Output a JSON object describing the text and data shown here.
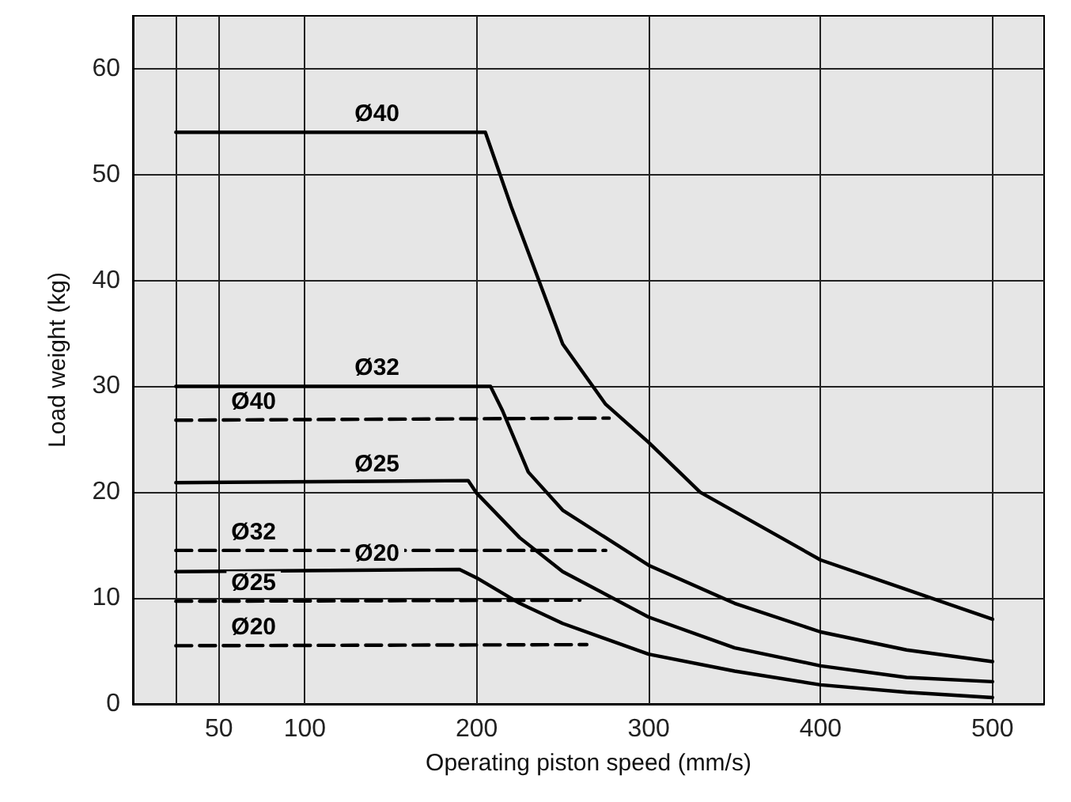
{
  "chart_data": {
    "type": "line",
    "xlabel": "Operating piston speed (mm/s)",
    "ylabel": "Load weight (kg)",
    "xlim": [
      0,
      530
    ],
    "xticks": [
      {
        "value": 25,
        "label": null
      },
      50,
      100,
      200,
      300,
      400,
      500
    ],
    "ylim": [
      0,
      65
    ],
    "yticks": [
      0,
      10,
      20,
      30,
      40,
      50,
      60
    ],
    "grid": true,
    "legend": false,
    "marker": "none",
    "series": [
      {
        "name": "Ø40",
        "color": "#000000",
        "line_style": "solid",
        "x": [
          25,
          205,
          220,
          250,
          275,
          300,
          330,
          400,
          450,
          500
        ],
        "values": [
          54,
          54,
          47,
          34,
          28.3,
          24.7,
          20,
          13.6,
          10.8,
          8
        ]
      },
      {
        "name": "Ø32",
        "color": "#000000",
        "line_style": "solid",
        "x": [
          25,
          208,
          215,
          230,
          250,
          300,
          350,
          400,
          450,
          500
        ],
        "values": [
          30,
          30,
          27.7,
          21.9,
          18.3,
          13.1,
          9.5,
          6.8,
          5.1,
          4
        ]
      },
      {
        "name": "Ø25",
        "color": "#000000",
        "line_style": "solid",
        "x": [
          25,
          195,
          200,
          225,
          250,
          300,
          350,
          400,
          450,
          500
        ],
        "values": [
          20.9,
          21.1,
          19.9,
          15.7,
          12.5,
          8.2,
          5.3,
          3.6,
          2.5,
          2.1
        ]
      },
      {
        "name": "Ø20",
        "color": "#000000",
        "line_style": "solid",
        "x": [
          25,
          190,
          200,
          225,
          250,
          300,
          350,
          400,
          450,
          500
        ],
        "values": [
          12.5,
          12.7,
          11.9,
          9.5,
          7.6,
          4.7,
          3.1,
          1.8,
          1.1,
          0.6
        ]
      },
      {
        "name": "Ø40",
        "color": "#000000",
        "line_style": "dashed",
        "x": [
          25,
          277
        ],
        "values": [
          26.8,
          27
        ]
      },
      {
        "name": "Ø32",
        "color": "#000000",
        "line_style": "dashed",
        "x": [
          25,
          275
        ],
        "values": [
          14.5,
          14.5
        ]
      },
      {
        "name": "Ø25",
        "color": "#000000",
        "line_style": "dashed",
        "x": [
          25,
          260
        ],
        "values": [
          9.7,
          9.8
        ]
      },
      {
        "name": "Ø20",
        "color": "#000000",
        "line_style": "dashed",
        "x": [
          25,
          264
        ],
        "values": [
          5.5,
          5.6
        ]
      }
    ]
  }
}
